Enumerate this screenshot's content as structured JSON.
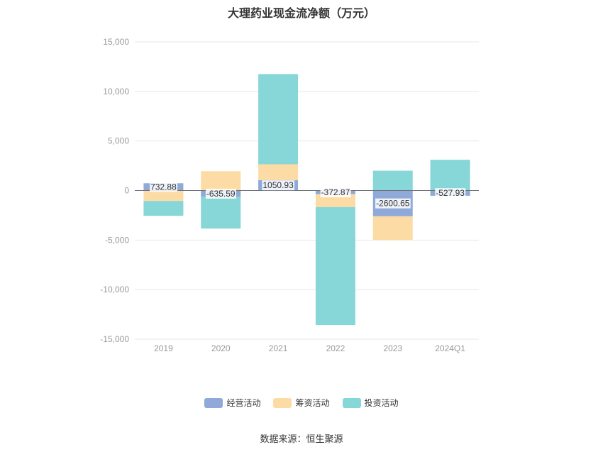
{
  "chart_data": {
    "type": "bar",
    "stacked": true,
    "title": "大理药业现金流净额（万元）",
    "categories": [
      "2019",
      "2020",
      "2021",
      "2022",
      "2023",
      "2024Q1"
    ],
    "series": [
      {
        "name": "经营活动",
        "color": "#8fa9d9",
        "values": [
          732.88,
          -635.59,
          1050.93,
          -372.87,
          -2600.65,
          -527.93
        ],
        "labels": [
          "732.88",
          "-635.59",
          "1050.93",
          "-372.87",
          "-2600.65",
          "-527.93"
        ]
      },
      {
        "name": "筹资活动",
        "color": "#fddba5",
        "values": [
          -1050,
          1950,
          1600,
          -1300,
          -2400,
          0
        ]
      },
      {
        "name": "投资活动",
        "color": "#87d6d8",
        "values": [
          -1500,
          -3200,
          9100,
          -11900,
          2000,
          3100
        ]
      }
    ],
    "ylim": [
      -15000,
      15000
    ],
    "yticks": [
      15000,
      10000,
      5000,
      0,
      -5000,
      -10000,
      -15000
    ],
    "ytick_labels": [
      "15,000",
      "10,000",
      "5,000",
      "0",
      "-5,000",
      "-10,000",
      "-15,000"
    ],
    "grid": true,
    "legend_position": "bottom",
    "source": "数据来源：恒生聚源"
  }
}
